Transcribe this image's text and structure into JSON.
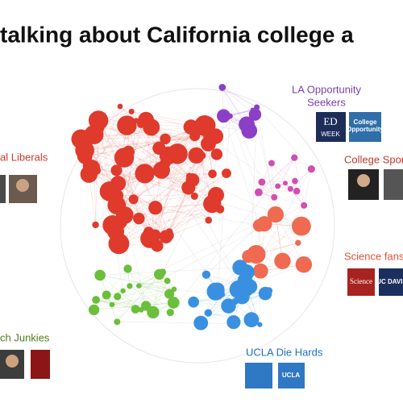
{
  "title": "talking about California college a",
  "groups": [
    {
      "label": [
        "LA Opportunity",
        "Seekers"
      ],
      "color": "#7b3fb3"
    },
    {
      "label": [
        "al Liberals"
      ],
      "color": "#d0392b"
    },
    {
      "label": [
        "College Spor"
      ],
      "color": "#c0392b"
    },
    {
      "label": [
        "Science fans"
      ],
      "color": "#d9543c"
    },
    {
      "label": [
        "ch Junkies"
      ],
      "color": "#4f7d1e"
    },
    {
      "label": [
        "UCLA Die Hards"
      ],
      "color": "#1f6fbf"
    }
  ],
  "logos": {
    "edweek": [
      "ED",
      "WEEK"
    ],
    "college": [
      "College",
      "Opportunity"
    ],
    "science": "Science",
    "ucdavis": "UC DAVIS",
    "ucla": "UCLA"
  }
}
